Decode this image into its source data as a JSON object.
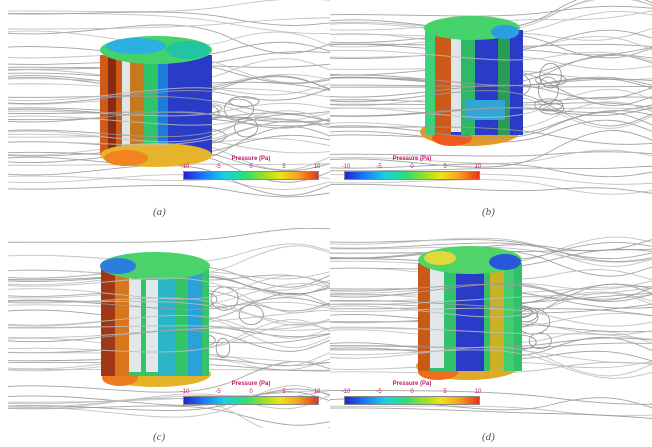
{
  "colorbar": {
    "title": "Pressure (Pa)",
    "ticks": [
      "-10",
      "-5",
      "0",
      "5",
      "10"
    ]
  },
  "panels": [
    {
      "caption": "(a)"
    },
    {
      "caption": "(b)"
    },
    {
      "caption": "(c)"
    },
    {
      "caption": "(d)"
    }
  ]
}
